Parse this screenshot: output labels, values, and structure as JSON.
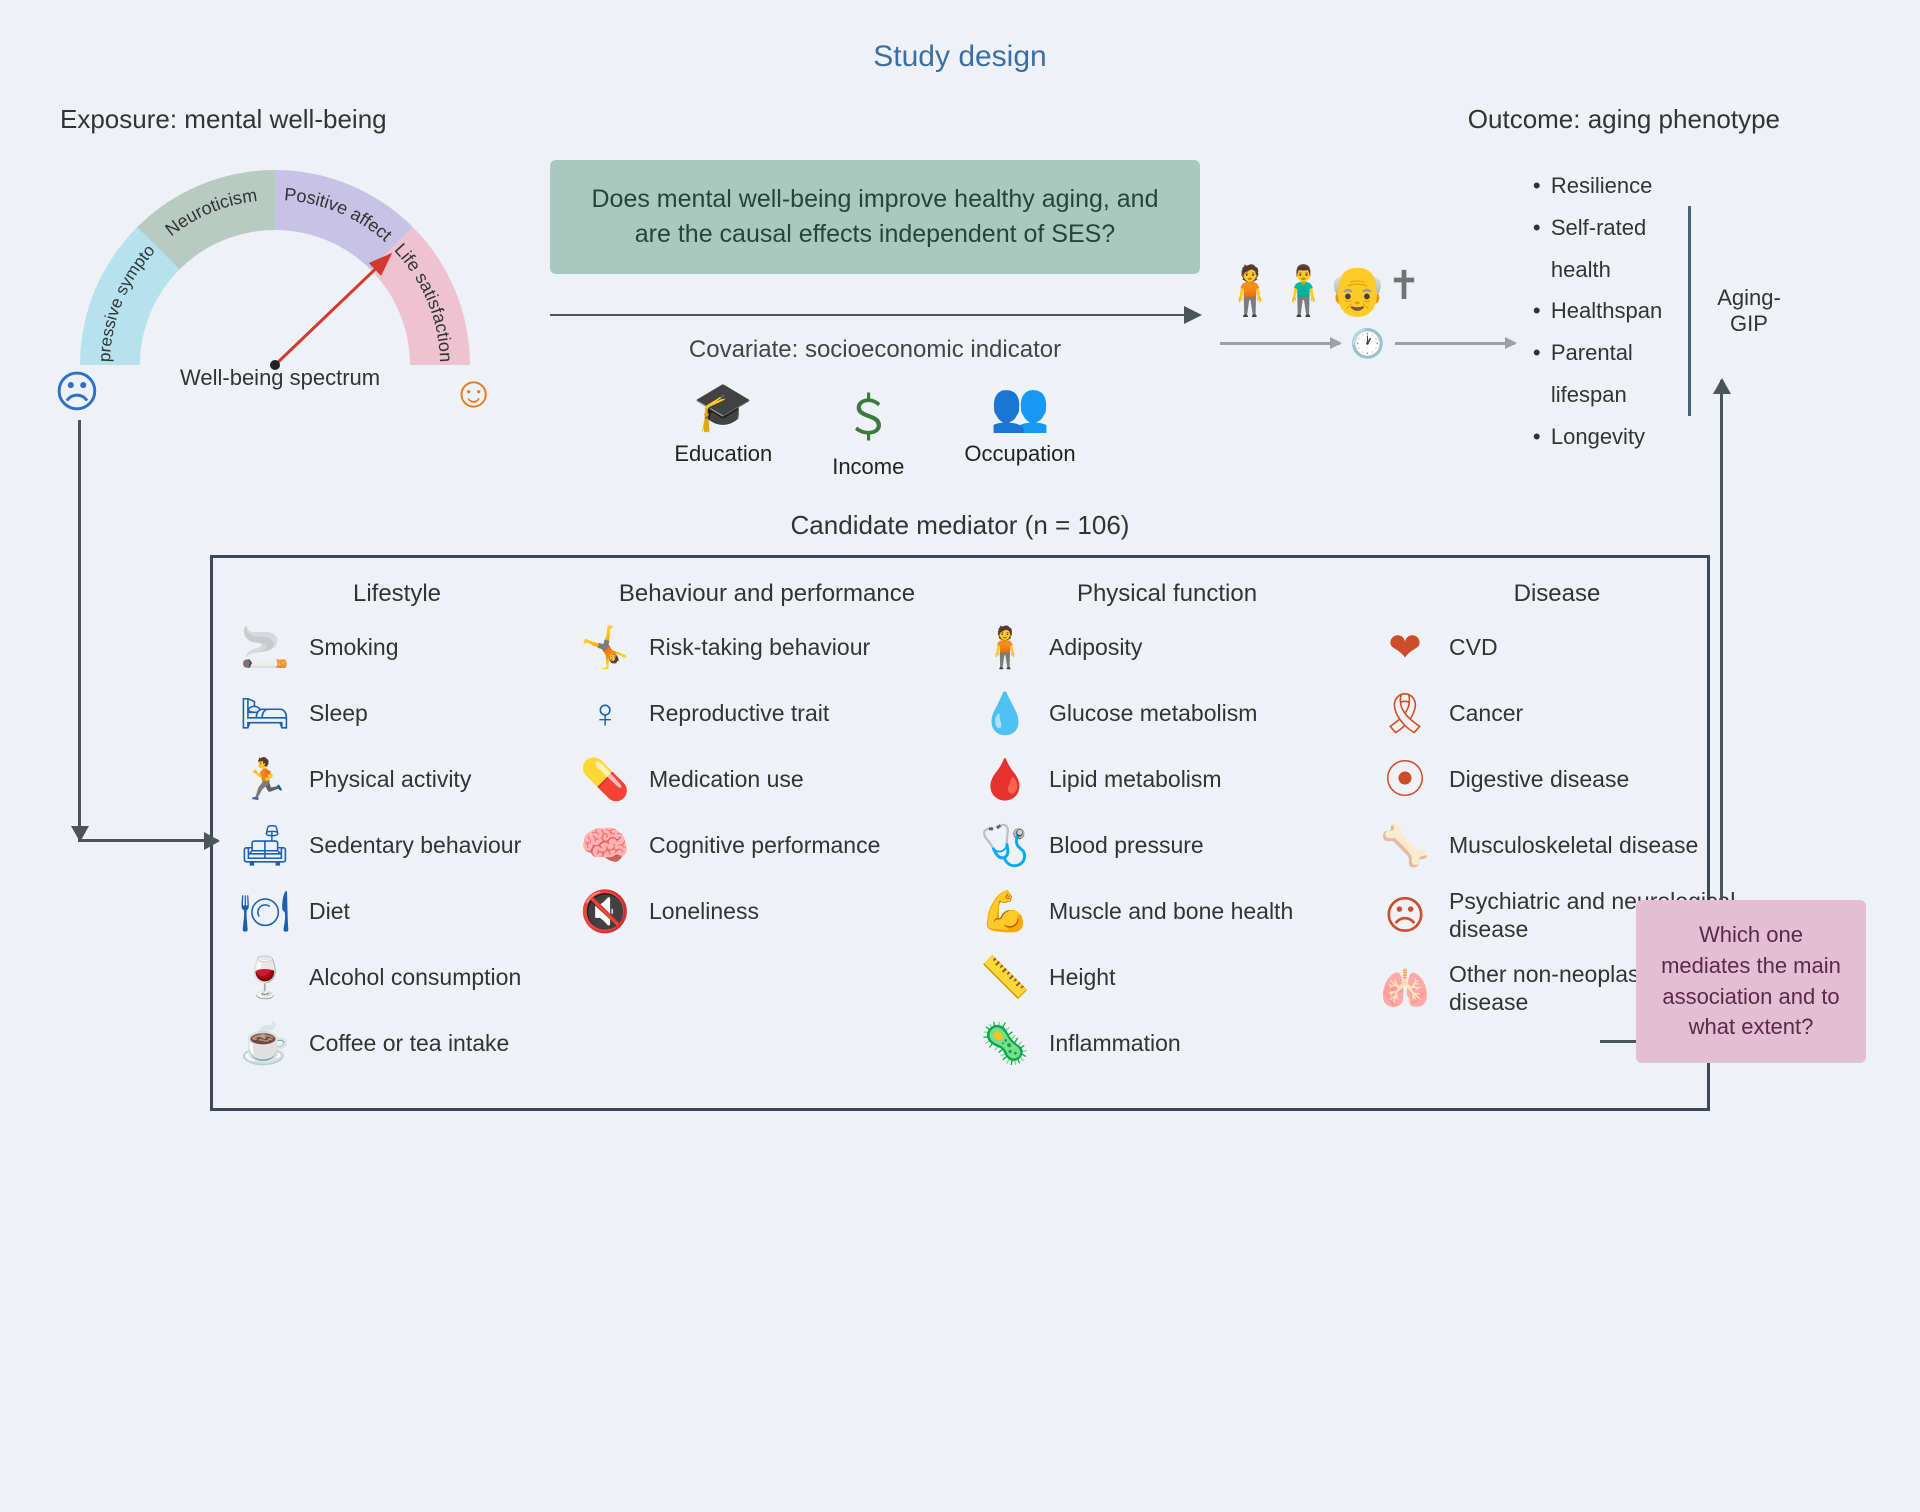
{
  "title": "Study design",
  "exposure": {
    "label": "Exposure: mental well-being",
    "spectrum_label": "Well-being spectrum",
    "segments": [
      {
        "label": "Depressive symptoms",
        "color": "#b6e2ef"
      },
      {
        "label": "Neuroticism",
        "color": "#b8cbc2"
      },
      {
        "label": "Positive affect",
        "color": "#c8c2e6"
      },
      {
        "label": "Life satisfaction",
        "color": "#edc3d2"
      }
    ],
    "sad_color": "#2e6fc7",
    "happy_color": "#e87b1f",
    "needle_color": "#d33a2f"
  },
  "question": "Does mental well-being improve healthy aging, and are the causal effects independent of SES?",
  "covariate": {
    "title": "Covariate: socioeconomic indicator",
    "items": [
      {
        "icon": "🎓",
        "label": "Education"
      },
      {
        "icon": "＄",
        "label": "Income"
      },
      {
        "icon": "👥",
        "label": "Occupation"
      }
    ],
    "icon_color": "#3d7a3e"
  },
  "outcome": {
    "label": "Outcome: aging phenotype",
    "items": [
      "Resilience",
      "Self-rated health",
      "Healthspan",
      "Parental lifespan",
      "Longevity"
    ],
    "group_label": "Aging-GIP"
  },
  "mediator": {
    "title": "Candidate mediator (n = 106)",
    "columns": [
      {
        "header": "Lifestyle",
        "class": "lifestyle",
        "items": [
          {
            "icon": "🚬",
            "label": "Smoking"
          },
          {
            "icon": "🛏",
            "label": "Sleep"
          },
          {
            "icon": "🏃",
            "label": "Physical activity"
          },
          {
            "icon": "🛋",
            "label": "Sedentary behaviour"
          },
          {
            "icon": "🍽",
            "label": "Diet"
          },
          {
            "icon": "🍷",
            "label": "Alcohol consumption"
          },
          {
            "icon": "☕",
            "label": "Coffee or tea intake"
          }
        ]
      },
      {
        "header": "Behaviour and performance",
        "class": "behaviour",
        "items": [
          {
            "icon": "🤸",
            "label": "Risk-taking behaviour"
          },
          {
            "icon": "♀",
            "label": "Reproductive trait"
          },
          {
            "icon": "💊",
            "label": "Medication use"
          },
          {
            "icon": "🧠",
            "label": "Cognitive performance"
          },
          {
            "icon": "🔇",
            "label": "Loneliness"
          }
        ]
      },
      {
        "header": "Physical function",
        "class": "physfn",
        "items": [
          {
            "icon": "🧍",
            "label": "Adiposity"
          },
          {
            "icon": "💧",
            "label": "Glucose metabolism"
          },
          {
            "icon": "🩸",
            "label": "Lipid metabolism"
          },
          {
            "icon": "🩺",
            "label": "Blood pressure"
          },
          {
            "icon": "💪",
            "label": "Muscle and bone health"
          },
          {
            "icon": "📏",
            "label": "Height"
          },
          {
            "icon": "🦠",
            "label": "Inflammation"
          }
        ]
      },
      {
        "header": "Disease",
        "class": "disease",
        "items": [
          {
            "icon": "❤",
            "label": "CVD"
          },
          {
            "icon": "🎗",
            "label": "Cancer"
          },
          {
            "icon": "⦿",
            "label": "Digestive disease"
          },
          {
            "icon": "🦴",
            "label": "Musculoskeletal disease"
          },
          {
            "icon": "☹",
            "label": "Psychiatric and neurological disease"
          },
          {
            "icon": "🫁",
            "label": "Other non-neoplastic disease"
          }
        ]
      }
    ]
  },
  "mediate_question": "Which one mediates the main association and to what extent?",
  "colors": {
    "background": "#eef2f6",
    "title": "#3a6ea5",
    "box_green": "#a9c9bf",
    "box_pink": "#e3bfd3",
    "arrow": "#4a5459",
    "border": "#3a4a5a"
  }
}
